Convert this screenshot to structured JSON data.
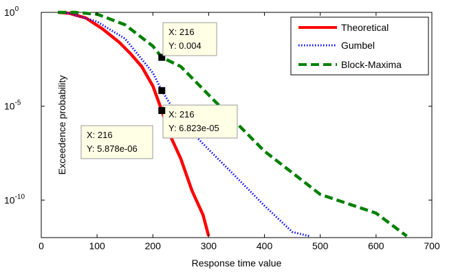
{
  "chart_data": {
    "type": "line",
    "xlabel": "Response time value",
    "ylabel": "Exceedence probability",
    "x_scale": "linear",
    "y_scale": "log",
    "xlim": [
      0,
      700
    ],
    "ylim": [
      1e-12,
      1
    ],
    "xticks": [
      0,
      100,
      200,
      300,
      400,
      500,
      600,
      700
    ],
    "xtick_labels": [
      "0",
      "100",
      "200",
      "300",
      "400",
      "500",
      "600",
      "700"
    ],
    "yticks": [
      1e-10,
      1e-05,
      1
    ],
    "ytick_labels": [
      {
        "base": "10",
        "exp": "-10"
      },
      {
        "base": "10",
        "exp": "-5"
      },
      {
        "base": "10",
        "exp": "0"
      }
    ],
    "grid": false,
    "legend_position": "top-right",
    "series": [
      {
        "name": "Theoretical",
        "color": "#ff0000",
        "style": "solid",
        "x": [
          30,
          50,
          80,
          110,
          140,
          160,
          180,
          200,
          216,
          230,
          250,
          270,
          290,
          300
        ],
        "y": [
          1,
          0.9,
          0.5,
          0.13,
          0.025,
          0.0063,
          0.0013,
          0.00012,
          5.878e-06,
          3.2e-07,
          1.6e-08,
          3.2e-10,
          1.6e-11,
          1.2e-12
        ]
      },
      {
        "name": "Gumbel",
        "color": "#0000ff",
        "style": "dotted",
        "x": [
          30,
          50,
          100,
          150,
          200,
          216,
          250,
          300,
          350,
          400,
          450,
          480
        ],
        "y": [
          1,
          0.9,
          0.32,
          0.04,
          0.0006,
          6.823e-05,
          1.6e-06,
          5e-08,
          1.6e-09,
          5e-11,
          2e-12,
          1.2e-12
        ]
      },
      {
        "name": "Block-Maxima",
        "color": "#008000",
        "style": "dashed",
        "x": [
          30,
          60,
          100,
          150,
          200,
          216,
          250,
          300,
          400,
          500,
          600,
          655
        ],
        "y": [
          1,
          1,
          0.8,
          0.22,
          0.016,
          0.004,
          0.0013,
          4e-05,
          4e-08,
          2e-10,
          2e-11,
          1.2e-12
        ]
      }
    ],
    "datatips": [
      {
        "x_label": "X: 216",
        "y_label": "Y: 0.004",
        "x": 216,
        "y": 0.004
      },
      {
        "x_label": "X: 216",
        "y_label": "Y: 6.823e-05",
        "x": 216,
        "y": 6.823e-05
      },
      {
        "x_label": "X: 216",
        "y_label": "Y: 5.878e-06",
        "x": 216,
        "y": 5.878e-06
      }
    ]
  }
}
